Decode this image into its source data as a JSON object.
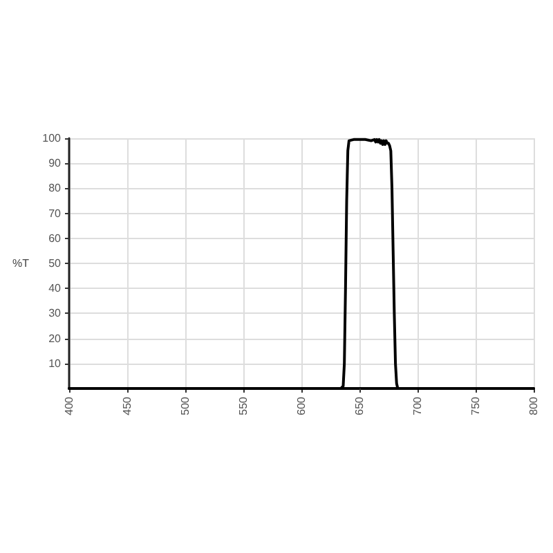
{
  "chart_data": {
    "type": "line",
    "ylabel": "%T",
    "color": "#000000",
    "marker": "none",
    "line_style": "solid",
    "grid": true,
    "x": [
      400,
      500,
      600,
      634,
      636,
      637,
      638,
      639,
      640,
      641,
      645,
      650,
      655,
      660,
      663,
      664,
      665,
      666,
      667,
      668,
      669,
      670,
      671,
      672,
      673,
      674,
      675,
      676,
      677,
      678,
      679,
      680,
      681,
      682,
      683,
      700,
      800
    ],
    "values": [
      0,
      0,
      0,
      0,
      1,
      10,
      40,
      75,
      95,
      99,
      99.5,
      99.5,
      99.5,
      99,
      99.5,
      98.5,
      99.5,
      98.5,
      99.5,
      98,
      99,
      97.5,
      99,
      97.5,
      99,
      98,
      98,
      97,
      95,
      80,
      55,
      30,
      10,
      2,
      0,
      0,
      0
    ],
    "xlim": [
      400,
      800
    ],
    "xticks": [
      400,
      450,
      500,
      550,
      600,
      650,
      700,
      750,
      800
    ],
    "ylim": [
      0,
      100
    ],
    "yticks": [
      10,
      20,
      30,
      40,
      50,
      60,
      70,
      80,
      90,
      100
    ]
  }
}
